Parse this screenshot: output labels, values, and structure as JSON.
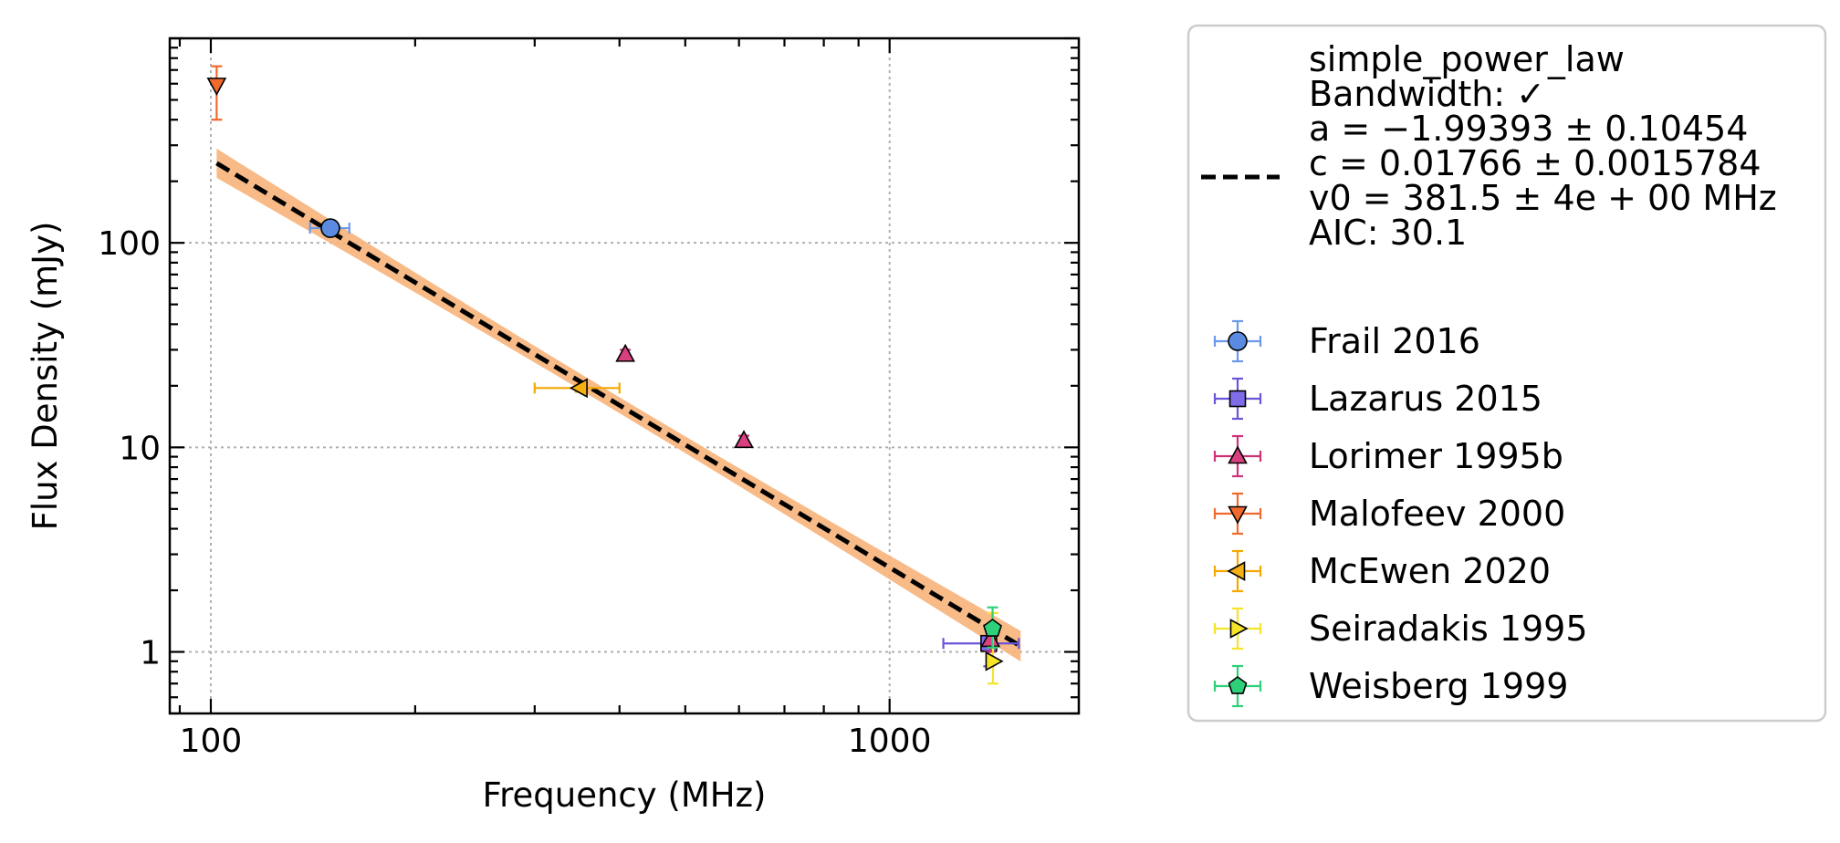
{
  "chart_data": {
    "type": "scatter",
    "xlabel": "Frequency (MHz)",
    "ylabel": "Flux Density (mJy)",
    "xscale": "log",
    "yscale": "log",
    "xlim": [
      87,
      1900
    ],
    "ylim": [
      0.5,
      1000
    ],
    "x_ticks": [
      {
        "value": 100,
        "label": "100"
      },
      {
        "value": 1000,
        "label": "1000"
      }
    ],
    "y_ticks": [
      {
        "value": 1,
        "label": "1"
      },
      {
        "value": 10,
        "label": "10"
      },
      {
        "value": 100,
        "label": "100"
      }
    ],
    "grid": true,
    "legend_position": "outside-right",
    "fit": {
      "model": "simple_power_law",
      "lines": [
        "simple_power_law",
        "Bandwidth: ✓",
        "a = −1.99393 ± 0.10454",
        "c = 0.01766 ± 0.0015784",
        "v0 = 381.5 ± 4e + 00 MHz",
        "AIC: 30.1"
      ],
      "a": -1.99393,
      "a_err": 0.10454,
      "c": 0.01766,
      "c_err": 0.0015784,
      "v0": 381.5,
      "x_range": [
        102,
        1560
      ],
      "line_color": "#000000",
      "band_color": "#f7b27a"
    },
    "series": [
      {
        "name": "Frail 2016",
        "marker": "circle",
        "color": "#5b8be0",
        "ecolor": "#6d98e8",
        "points": [
          {
            "x": 150,
            "y": 118,
            "xerr": [
              10,
              10
            ],
            "yerr": [
              5,
              5
            ]
          }
        ]
      },
      {
        "name": "Lazarus 2015",
        "marker": "square",
        "color": "#7f6ce8",
        "ecolor": "#6a55d8",
        "points": [
          {
            "x": 1400,
            "y": 1.1,
            "xerr": [
              200,
              150
            ],
            "yerr": [
              0.25,
              0.25
            ]
          }
        ]
      },
      {
        "name": "Lorimer 1995b",
        "marker": "triangle-up",
        "color": "#d9407f",
        "ecolor": "#cc3377",
        "points": [
          {
            "x": 408,
            "y": 28.5,
            "xerr": [
              0,
              0
            ],
            "yerr": [
              1.5,
              1.5
            ]
          },
          {
            "x": 610,
            "y": 10.8,
            "xerr": [
              0,
              0
            ],
            "yerr": [
              0.6,
              0.6
            ]
          },
          {
            "x": 1408,
            "y": 1.15,
            "xerr": [
              0,
              0
            ],
            "yerr": [
              0.15,
              0.15
            ]
          }
        ]
      },
      {
        "name": "Malofeev 2000",
        "marker": "triangle-down",
        "color": "#f06a2e",
        "ecolor": "#f06a2e",
        "points": [
          {
            "x": 102,
            "y": 590,
            "xerr": [
              0,
              0
            ],
            "yerr": [
              190,
              140
            ]
          }
        ]
      },
      {
        "name": "McEwen 2020",
        "marker": "triangle-left",
        "color": "#f5b014",
        "ecolor": "#f5a800",
        "points": [
          {
            "x": 350,
            "y": 19.5,
            "xerr": [
              50,
              50
            ],
            "yerr": [
              0.8,
              0.8
            ]
          }
        ]
      },
      {
        "name": "Seiradakis 1995",
        "marker": "triangle-right",
        "color": "#f5e42a",
        "ecolor": "#f5e42a",
        "points": [
          {
            "x": 1420,
            "y": 0.9,
            "xerr": [
              0,
              0
            ],
            "yerr": [
              0.2,
              0.65
            ]
          }
        ]
      },
      {
        "name": "Weisberg 1999",
        "marker": "pentagon",
        "color": "#2fd07a",
        "ecolor": "#2fd07a",
        "points": [
          {
            "x": 1418,
            "y": 1.3,
            "xerr": [
              0,
              0
            ],
            "yerr": [
              0.25,
              0.35
            ]
          }
        ]
      }
    ]
  }
}
